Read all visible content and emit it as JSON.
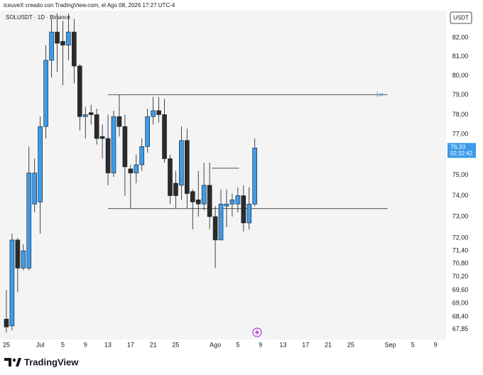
{
  "header": {
    "credit": "iceuveX creado con TradingView.com, el Ago 08, 2026 17:27 UTC-4",
    "brand": "TradingView"
  },
  "chart_data": {
    "type": "candlestick",
    "title": "SOLUSDT · 1D · Binance",
    "currency": "USDT",
    "log_scale": true,
    "up_color": "#3d9be9",
    "down_color": "#2b2b2b",
    "open": [
      68.3,
      68.0,
      71.9,
      70.6,
      70.6,
      73.6,
      73.7,
      77.4,
      80.8,
      82.3,
      81.8,
      81.6,
      82.3,
      80.5,
      77.9,
      78.1,
      78.0,
      76.9,
      76.8,
      75.1,
      77.9,
      77.4,
      75.3,
      75.1,
      75.5,
      76.4,
      77.9,
      78.2,
      78.0,
      75.8,
      74.6,
      74.5,
      76.7,
      74.2,
      73.8,
      73.6,
      74.5,
      73.0,
      71.9,
      73.5,
      73.6,
      73.6,
      74.0,
      72.7,
      73.6
    ],
    "high": [
      69.6,
      72.2,
      72.0,
      71.7,
      76.4,
      75.8,
      77.9,
      81.6,
      83.0,
      83.3,
      82.9,
      83.3,
      83.0,
      80.6,
      78.4,
      78.5,
      78.3,
      77.5,
      78.0,
      78.2,
      79.0,
      78.0,
      75.5,
      76.0,
      76.8,
      78.3,
      78.9,
      78.9,
      78.8,
      76.0,
      75.2,
      77.4,
      77.3,
      74.3,
      75.2,
      75.6,
      75.6,
      73.5,
      74.3,
      74.3,
      74.1,
      74.4,
      74.5,
      74.4,
      76.8
    ],
    "low": [
      67.7,
      67.8,
      69.5,
      70.5,
      70.5,
      73.2,
      72.2,
      76.8,
      79.9,
      80.2,
      79.5,
      80.8,
      79.6,
      77.2,
      76.8,
      77.5,
      76.5,
      75.8,
      74.5,
      74.9,
      76.9,
      74.0,
      73.4,
      74.6,
      75.2,
      76.1,
      77.5,
      77.6,
      75.6,
      73.6,
      73.4,
      73.8,
      73.4,
      72.4,
      73.0,
      73.3,
      72.4,
      70.6,
      71.9,
      72.5,
      73.0,
      73.2,
      72.3,
      72.4,
      73.5
    ],
    "close": [
      67.95,
      71.9,
      70.6,
      71.4,
      75.1,
      75.1,
      77.4,
      80.8,
      82.3,
      81.7,
      81.6,
      82.3,
      80.5,
      77.9,
      78.0,
      78.0,
      76.8,
      76.8,
      75.1,
      77.9,
      77.4,
      75.4,
      75.1,
      75.5,
      76.4,
      77.9,
      78.2,
      78.0,
      75.8,
      74.0,
      74.0,
      76.7,
      74.1,
      73.7,
      73.6,
      74.5,
      73.0,
      71.9,
      73.6,
      73.6,
      73.8,
      74.0,
      72.7,
      73.6,
      76.33
    ],
    "ylim": [
      67.4,
      83.45
    ],
    "yticks": [
      {
        "value": 82,
        "label": "82,00"
      },
      {
        "value": 81,
        "label": "81,00"
      },
      {
        "value": 80,
        "label": "80,00"
      },
      {
        "value": 79,
        "label": "79,00"
      },
      {
        "value": 78,
        "label": "78,00"
      },
      {
        "value": 77,
        "label": "77,00"
      },
      {
        "value": 75,
        "label": "75,00"
      },
      {
        "value": 74,
        "label": "74,00"
      },
      {
        "value": 73,
        "label": "73,00"
      },
      {
        "value": 72,
        "label": "72,00"
      },
      {
        "value": 71.4,
        "label": "71,40"
      },
      {
        "value": 70.8,
        "label": "70,80"
      },
      {
        "value": 70.2,
        "label": "70,20"
      },
      {
        "value": 69.6,
        "label": "69,60"
      },
      {
        "value": 69,
        "label": "69,00"
      },
      {
        "value": 68.4,
        "label": "68,40"
      },
      {
        "value": 67.85,
        "label": "67,85"
      }
    ],
    "xlim": [
      -0.5,
      77.5
    ],
    "xticks": [
      {
        "value": 0,
        "label": "25"
      },
      {
        "value": 6,
        "label": "Jul"
      },
      {
        "value": 10,
        "label": "5"
      },
      {
        "value": 14,
        "label": "9"
      },
      {
        "value": 18,
        "label": "13"
      },
      {
        "value": 22,
        "label": "17"
      },
      {
        "value": 26,
        "label": "21"
      },
      {
        "value": 30,
        "label": "25"
      },
      {
        "value": 37,
        "label": "Ago"
      },
      {
        "value": 41,
        "label": "5"
      },
      {
        "value": 45,
        "label": "9"
      },
      {
        "value": 49,
        "label": "13"
      },
      {
        "value": 53,
        "label": "17"
      },
      {
        "value": 57,
        "label": "21"
      },
      {
        "value": 61,
        "label": "25"
      },
      {
        "value": 68,
        "label": "Sep"
      },
      {
        "value": 72,
        "label": "5"
      },
      {
        "value": 76,
        "label": "9"
      }
    ],
    "levels": [
      {
        "value": 79.02,
        "start": 18,
        "end": 67.5,
        "label": "1w"
      },
      {
        "value": 73.38,
        "start": 18,
        "end": 67.5
      },
      {
        "value": 75.33,
        "start": 36.4,
        "end": 41.2
      }
    ],
    "last_price": {
      "value": 76.33,
      "label": "76,33"
    },
    "countdown": "02:32:42"
  }
}
